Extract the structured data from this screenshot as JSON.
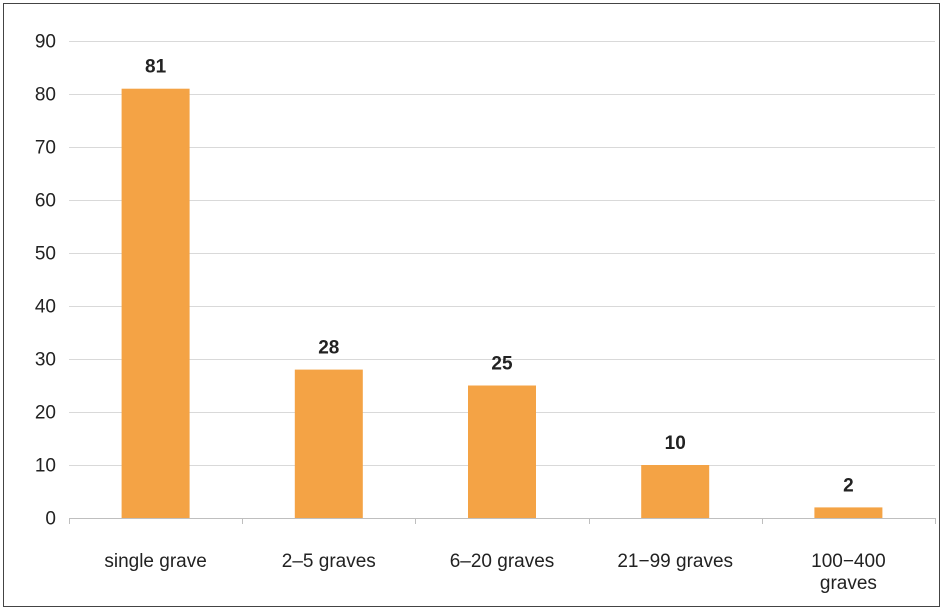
{
  "chart_data": {
    "type": "bar",
    "categories": [
      "single grave",
      "2–5 graves",
      "6–20 graves",
      "21−99 graves",
      "100−400 graves"
    ],
    "category_lines": [
      [
        "single grave"
      ],
      [
        "2–5 graves"
      ],
      [
        "6–20 graves"
      ],
      [
        "21−99 graves"
      ],
      [
        "100−400",
        "graves"
      ]
    ],
    "values": [
      81,
      28,
      25,
      10,
      2
    ],
    "data_labels": [
      "81",
      "28",
      "25",
      "10",
      "2"
    ],
    "title": "",
    "xlabel": "",
    "ylabel": "",
    "ylim": [
      0,
      90
    ],
    "yticks": [
      0,
      10,
      20,
      30,
      40,
      50,
      60,
      70,
      80,
      90
    ],
    "grid": true,
    "legend": "none",
    "colors": {
      "bar": "#F4A345",
      "grid": "#D9D9D9",
      "axis": "#BFBFBF",
      "text": "#222222"
    }
  }
}
